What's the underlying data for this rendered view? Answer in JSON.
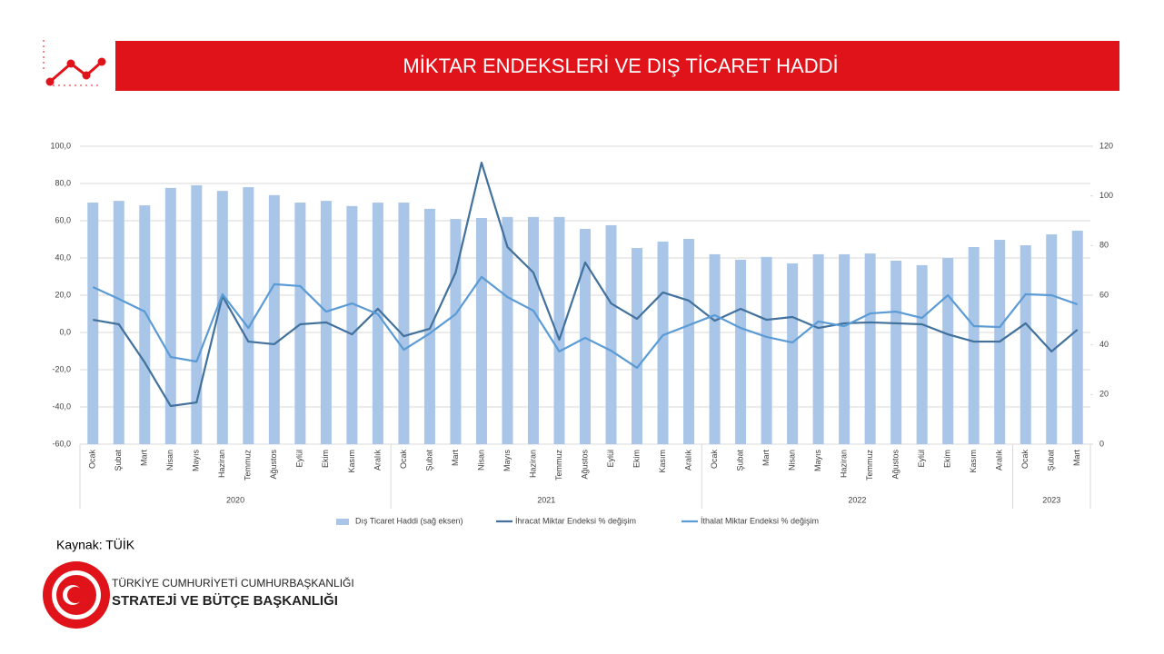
{
  "header": {
    "title": "MİKTAR ENDEKSLERİ VE DIŞ TİCARET HADDİ"
  },
  "chart_data": {
    "type": "combo",
    "groups": [
      {
        "name": "2020",
        "categories": [
          "Ocak",
          "Şubat",
          "Mart",
          "Nisan",
          "Mayıs",
          "Haziran",
          "Temmuz",
          "Ağustos",
          "Eylül",
          "Ekim",
          "Kasım",
          "Aralık"
        ]
      },
      {
        "name": "2021",
        "categories": [
          "Ocak",
          "Şubat",
          "Mart",
          "Nisan",
          "Mayıs",
          "Haziran",
          "Temmuz",
          "Ağustos",
          "Eylül",
          "Ekim",
          "Kasım",
          "Aralık"
        ]
      },
      {
        "name": "2022",
        "categories": [
          "Ocak",
          "Şubat",
          "Mart",
          "Nisan",
          "Mayıs",
          "Haziran",
          "Temmuz",
          "Ağustos",
          "Eylül",
          "Ekim",
          "Kasım",
          "Aralık"
        ]
      },
      {
        "name": "2023",
        "categories": [
          "Ocak",
          "Şubat",
          "Mart"
        ]
      }
    ],
    "series": [
      {
        "name": "Dış Ticaret Haddi (sağ eksen)",
        "type": "bar",
        "axis": "y2",
        "color": "#a9c5e8",
        "values": [
          97.3,
          98,
          96.2,
          103.2,
          104.3,
          102,
          103.5,
          100.3,
          97.3,
          98,
          95.9,
          97.3,
          97.3,
          94.8,
          90.7,
          91.1,
          91.5,
          91.5,
          91.5,
          86.7,
          88.2,
          79,
          81.6,
          82.7,
          76.5,
          74.3,
          75.4,
          72.8,
          76.5,
          76.5,
          76.8,
          73.9,
          72.1,
          75,
          79.4,
          82.3,
          80.1,
          84.5,
          86
        ]
      },
      {
        "name": "İhracat Miktar Endeksi % değişim",
        "type": "line",
        "color": "#41719c",
        "values": [
          6.8,
          4.4,
          -16.1,
          -39.5,
          -37.6,
          19.5,
          -4.9,
          -6.3,
          4.4,
          5.4,
          -1,
          12.7,
          -2,
          2,
          32.2,
          91.2,
          45.9,
          32.2,
          -3.9,
          37.6,
          15.6,
          7.3,
          21.5,
          17.1,
          6.3,
          12.7,
          6.8,
          8.3,
          2.4,
          4.9,
          5.4,
          4.9,
          4.4,
          -1,
          -4.9,
          -4.9,
          4.9,
          -10.2,
          1.5
        ]
      },
      {
        "name": "İthalat Miktar Endeksi % değişim",
        "type": "line",
        "color": "#5b9bd5",
        "values": [
          24.4,
          18,
          11.2,
          -13.2,
          -15.6,
          20.5,
          2.4,
          25.9,
          24.9,
          11.2,
          15.6,
          9.8,
          -9.3,
          -0.5,
          9.8,
          29.8,
          19,
          11.7,
          -10.2,
          -2.9,
          -9.8,
          -19,
          -1.5,
          3.9,
          9.3,
          2.4,
          -2.4,
          -5.4,
          5.9,
          3.4,
          10.2,
          11.2,
          7.8,
          20,
          3.4,
          2.9,
          20.5,
          20,
          15.1
        ]
      }
    ],
    "ylim": [
      -60,
      100
    ],
    "yticks": [
      {
        "value": -60,
        "label": "-60,0"
      },
      {
        "value": -40,
        "label": "-40,0"
      },
      {
        "value": -20,
        "label": "-20,0"
      },
      {
        "value": 0,
        "label": "0,0"
      },
      {
        "value": 20,
        "label": "20,0"
      },
      {
        "value": 40,
        "label": "40,0"
      },
      {
        "value": 60,
        "label": "60,0"
      },
      {
        "value": 80,
        "label": "80,0"
      },
      {
        "value": 100,
        "label": "100,0"
      }
    ],
    "y2lim": [
      0,
      120
    ],
    "y2ticks": [
      0,
      20,
      40,
      60,
      80,
      100,
      120
    ],
    "grid": true,
    "legend": "bottom"
  },
  "footer": {
    "source": "Kaynak: TÜİK",
    "org_line1": "TÜRKİYE CUMHURİYETİ CUMHURBAŞKANLIĞI",
    "org_line2": "STRATEJİ VE BÜTÇE BAŞKANLIĞI"
  }
}
